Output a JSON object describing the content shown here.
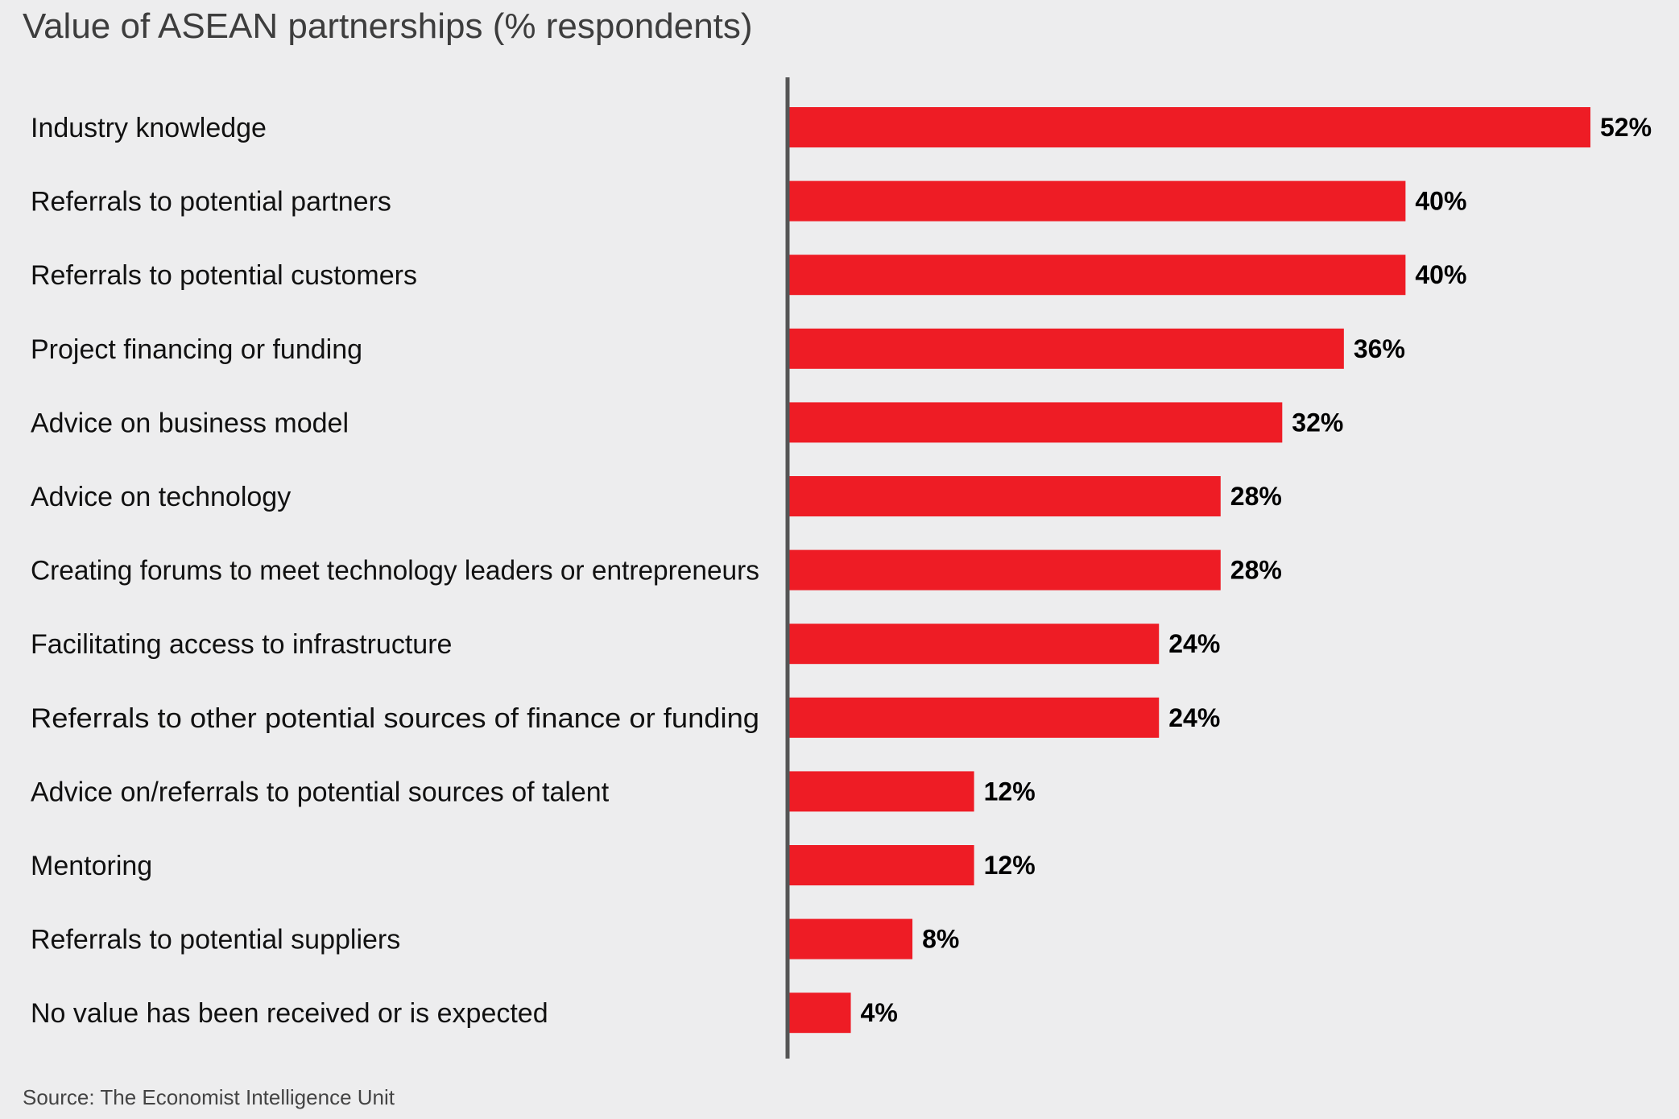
{
  "chart_data": {
    "type": "bar",
    "orientation": "horizontal",
    "title": "Value of ASEAN partnerships (% respondents)",
    "categories": [
      "Industry knowledge",
      "Referrals to potential partners",
      "Referrals to potential customers",
      "Project financing or funding",
      "Advice on business model",
      "Advice on technology",
      "Creating forums to meet technology leaders or entrepreneurs",
      "Facilitating access to infrastructure",
      "Referrals to other potential sources of finance or funding",
      "Advice on/referrals to potential sources of talent",
      "Mentoring",
      "Referrals to potential suppliers",
      "No value has been received or is expected"
    ],
    "values": [
      52,
      40,
      40,
      36,
      32,
      28,
      28,
      24,
      24,
      12,
      12,
      8,
      4
    ],
    "value_labels": [
      "52%",
      "40%",
      "40%",
      "36%",
      "32%",
      "28%",
      "28%",
      "24%",
      "24%",
      "12%",
      "12%",
      "8%",
      "4%"
    ],
    "xlim": [
      0,
      52
    ],
    "grid": false,
    "legend": "none",
    "bar_color": "#ee1c25",
    "axis_color": "#555555",
    "source": "Source: The Economist Intelligence Unit"
  }
}
